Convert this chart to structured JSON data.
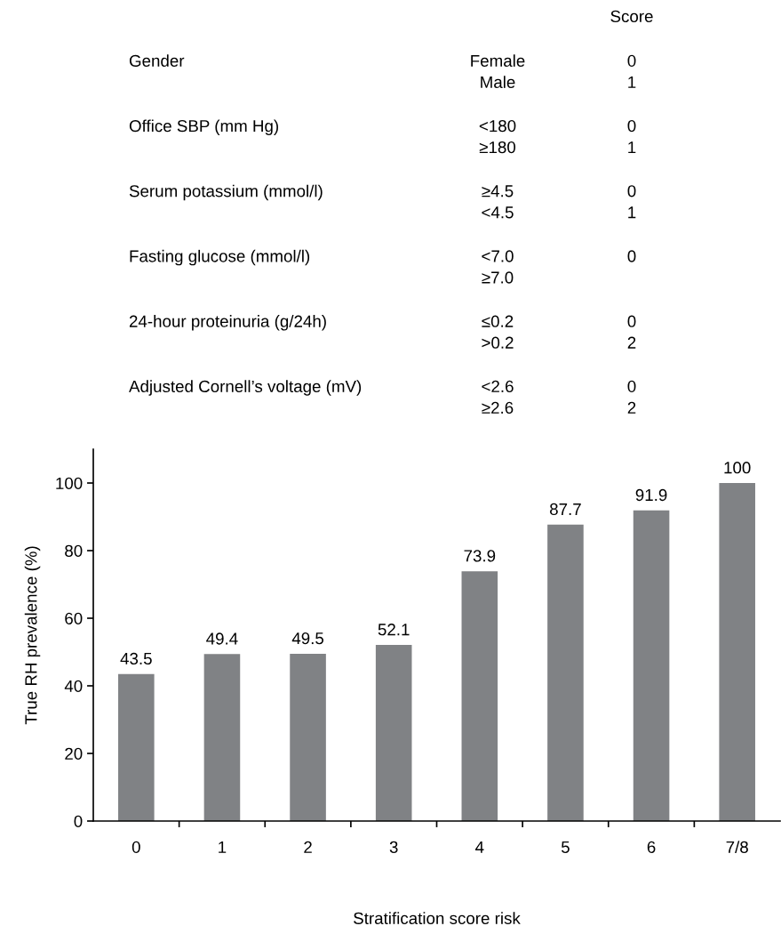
{
  "chart_data": [
    {
      "type": "other",
      "annotations": [
        "Score",
        "Gender",
        "Female",
        "0",
        "Male",
        "1",
        "Office SBP (mm Hg)",
        "<180",
        "0",
        "≥180",
        "1",
        "Serum potassium (mmol/l)",
        "≥4.5",
        "0",
        "<4.5",
        "1",
        "Fasting glucose (mmol/l)",
        "<7.0",
        "0",
        "≥7.0",
        "24-hour proteinuria (g/24h)",
        "≤0.2",
        "0",
        ">0.2",
        "2",
        "Adjusted Cornell’s voltage (mV)",
        "<2.6",
        "0",
        "≥2.6",
        "2"
      ]
    },
    {
      "type": "bar",
      "categories": [
        "0",
        "1",
        "2",
        "3",
        "4",
        "5",
        "6",
        "7/8"
      ],
      "values": [
        43.5,
        49.4,
        49.5,
        52.1,
        73.9,
        87.7,
        91.9,
        100
      ],
      "color": "#808285",
      "data_labels": true,
      "ylim": [
        0,
        110
      ],
      "yticks": [
        0,
        20,
        40,
        60,
        80,
        100
      ],
      "xlabel": "Stratification score risk",
      "ylabel": "True RH prevalence (%)"
    }
  ]
}
